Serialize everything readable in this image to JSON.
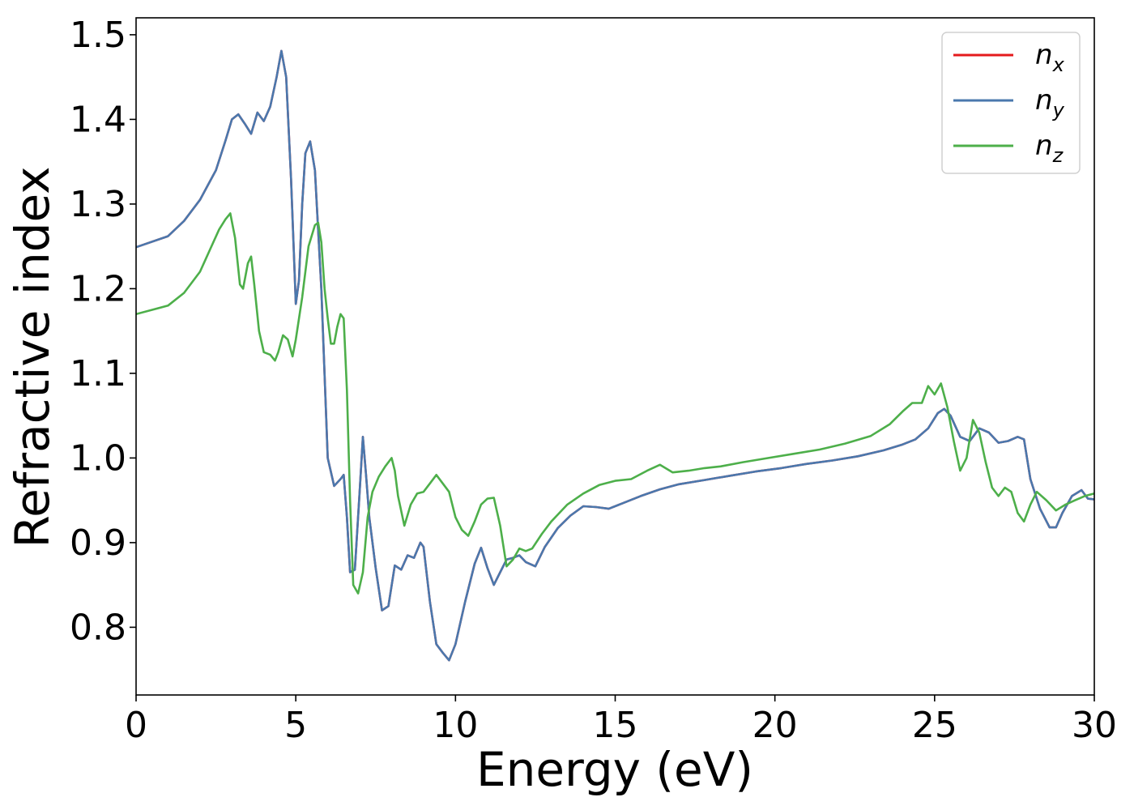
{
  "chart_data": {
    "type": "line",
    "xlabel": "Energy (eV)",
    "ylabel": "Refractive index",
    "xlim": [
      0,
      30
    ],
    "ylim": [
      0.72,
      1.52
    ],
    "xticks": [
      0,
      5,
      10,
      15,
      20,
      25,
      30
    ],
    "xtick_labels": [
      "0",
      "5",
      "10",
      "15",
      "20",
      "25",
      "30"
    ],
    "yticks": [
      0.8,
      0.9,
      1.0,
      1.1,
      1.2,
      1.3,
      1.4,
      1.5
    ],
    "ytick_labels": [
      "0.8",
      "0.9",
      "1.0",
      "1.1",
      "1.2",
      "1.3",
      "1.4",
      "1.5"
    ],
    "grid": false,
    "legend_position": "top-right",
    "series": [
      {
        "name": "n",
        "subscript": "x",
        "color": "#e41a1c",
        "x": [
          0,
          1,
          1.5,
          2,
          2.5,
          2.8,
          3.0,
          3.2,
          3.4,
          3.6,
          3.8,
          4.0,
          4.2,
          4.4,
          4.55,
          4.7,
          4.85,
          5.0,
          5.1,
          5.2,
          5.3,
          5.45,
          5.6,
          5.8,
          6.0,
          6.2,
          6.4,
          6.5,
          6.6,
          6.7,
          6.85,
          7.0,
          7.1,
          7.2,
          7.3,
          7.5,
          7.7,
          7.9,
          8.1,
          8.3,
          8.5,
          8.7,
          8.9,
          9.0,
          9.2,
          9.4,
          9.6,
          9.8,
          10.0,
          10.3,
          10.6,
          10.8,
          11.0,
          11.2,
          11.4,
          11.6,
          11.8,
          12.0,
          12.2,
          12.5,
          12.8,
          13.2,
          13.6,
          14.0,
          14.4,
          14.8,
          15.2,
          15.8,
          16.4,
          17.0,
          17.8,
          18.6,
          19.4,
          20.2,
          21.0,
          21.8,
          22.6,
          23.4,
          24.0,
          24.4,
          24.8,
          25.1,
          25.3,
          25.5,
          25.8,
          26.1,
          26.4,
          26.7,
          27.0,
          27.3,
          27.6,
          27.8,
          28.0,
          28.3,
          28.6,
          28.8,
          29.0,
          29.3,
          29.6,
          29.8,
          30.0
        ],
        "y": [
          1.249,
          1.262,
          1.28,
          1.305,
          1.34,
          1.375,
          1.4,
          1.406,
          1.395,
          1.383,
          1.408,
          1.398,
          1.415,
          1.45,
          1.481,
          1.45,
          1.33,
          1.182,
          1.21,
          1.3,
          1.36,
          1.374,
          1.34,
          1.2,
          1.0,
          0.967,
          0.975,
          0.98,
          0.93,
          0.865,
          0.868,
          0.96,
          1.025,
          0.98,
          0.93,
          0.87,
          0.82,
          0.825,
          0.873,
          0.868,
          0.885,
          0.882,
          0.9,
          0.895,
          0.83,
          0.78,
          0.77,
          0.761,
          0.78,
          0.83,
          0.875,
          0.894,
          0.87,
          0.85,
          0.865,
          0.88,
          0.882,
          0.885,
          0.877,
          0.872,
          0.895,
          0.917,
          0.932,
          0.943,
          0.942,
          0.94,
          0.946,
          0.955,
          0.963,
          0.969,
          0.974,
          0.979,
          0.984,
          0.988,
          0.993,
          0.997,
          1.002,
          1.009,
          1.016,
          1.022,
          1.035,
          1.053,
          1.058,
          1.05,
          1.025,
          1.02,
          1.035,
          1.03,
          1.018,
          1.02,
          1.025,
          1.022,
          0.975,
          0.94,
          0.918,
          0.918,
          0.935,
          0.955,
          0.962,
          0.952,
          0.951
        ]
      },
      {
        "name": "n",
        "subscript": "y",
        "color": "#4a78ad",
        "x": [
          0,
          1,
          1.5,
          2,
          2.5,
          2.8,
          3.0,
          3.2,
          3.4,
          3.6,
          3.8,
          4.0,
          4.2,
          4.4,
          4.55,
          4.7,
          4.85,
          5.0,
          5.1,
          5.2,
          5.3,
          5.45,
          5.6,
          5.8,
          6.0,
          6.2,
          6.4,
          6.5,
          6.6,
          6.7,
          6.85,
          7.0,
          7.1,
          7.2,
          7.3,
          7.5,
          7.7,
          7.9,
          8.1,
          8.3,
          8.5,
          8.7,
          8.9,
          9.0,
          9.2,
          9.4,
          9.6,
          9.8,
          10.0,
          10.3,
          10.6,
          10.8,
          11.0,
          11.2,
          11.4,
          11.6,
          11.8,
          12.0,
          12.2,
          12.5,
          12.8,
          13.2,
          13.6,
          14.0,
          14.4,
          14.8,
          15.2,
          15.8,
          16.4,
          17.0,
          17.8,
          18.6,
          19.4,
          20.2,
          21.0,
          21.8,
          22.6,
          23.4,
          24.0,
          24.4,
          24.8,
          25.1,
          25.3,
          25.5,
          25.8,
          26.1,
          26.4,
          26.7,
          27.0,
          27.3,
          27.6,
          27.8,
          28.0,
          28.3,
          28.6,
          28.8,
          29.0,
          29.3,
          29.6,
          29.8,
          30.0
        ],
        "y": [
          1.249,
          1.262,
          1.28,
          1.305,
          1.34,
          1.375,
          1.4,
          1.406,
          1.395,
          1.383,
          1.408,
          1.398,
          1.415,
          1.45,
          1.481,
          1.45,
          1.33,
          1.182,
          1.21,
          1.3,
          1.36,
          1.374,
          1.34,
          1.2,
          1.0,
          0.967,
          0.975,
          0.98,
          0.93,
          0.865,
          0.868,
          0.96,
          1.025,
          0.98,
          0.93,
          0.87,
          0.82,
          0.825,
          0.873,
          0.868,
          0.885,
          0.882,
          0.9,
          0.895,
          0.83,
          0.78,
          0.77,
          0.761,
          0.78,
          0.83,
          0.875,
          0.894,
          0.87,
          0.85,
          0.865,
          0.88,
          0.882,
          0.885,
          0.877,
          0.872,
          0.895,
          0.917,
          0.932,
          0.943,
          0.942,
          0.94,
          0.946,
          0.955,
          0.963,
          0.969,
          0.974,
          0.979,
          0.984,
          0.988,
          0.993,
          0.997,
          1.002,
          1.009,
          1.016,
          1.022,
          1.035,
          1.053,
          1.058,
          1.05,
          1.025,
          1.02,
          1.035,
          1.03,
          1.018,
          1.02,
          1.025,
          1.022,
          0.975,
          0.94,
          0.918,
          0.918,
          0.935,
          0.955,
          0.962,
          0.952,
          0.951
        ]
      },
      {
        "name": "n",
        "subscript": "z",
        "color": "#4daf4a",
        "x": [
          0,
          1,
          1.5,
          2,
          2.3,
          2.6,
          2.8,
          2.95,
          3.1,
          3.25,
          3.35,
          3.5,
          3.6,
          3.7,
          3.85,
          4.0,
          4.2,
          4.35,
          4.45,
          4.6,
          4.75,
          4.9,
          5.0,
          5.2,
          5.4,
          5.6,
          5.7,
          5.8,
          5.9,
          6.0,
          6.1,
          6.2,
          6.3,
          6.4,
          6.5,
          6.6,
          6.7,
          6.8,
          6.95,
          7.1,
          7.25,
          7.4,
          7.6,
          7.8,
          8.0,
          8.1,
          8.2,
          8.4,
          8.6,
          8.8,
          9.0,
          9.2,
          9.4,
          9.6,
          9.8,
          10.0,
          10.2,
          10.4,
          10.6,
          10.8,
          11.0,
          11.2,
          11.4,
          11.6,
          11.8,
          12.0,
          12.2,
          12.4,
          12.7,
          13.0,
          13.5,
          14.0,
          14.5,
          15.0,
          15.5,
          16.0,
          16.4,
          16.8,
          17.3,
          17.8,
          18.3,
          19.0,
          19.8,
          20.6,
          21.4,
          22.2,
          23.0,
          23.6,
          24.0,
          24.3,
          24.6,
          24.8,
          25.0,
          25.2,
          25.4,
          25.6,
          25.8,
          26.0,
          26.2,
          26.4,
          26.6,
          26.8,
          27.0,
          27.2,
          27.4,
          27.6,
          27.8,
          28.0,
          28.2,
          28.5,
          28.8,
          29.1,
          29.4,
          29.7,
          30.0
        ],
        "y": [
          1.17,
          1.18,
          1.195,
          1.22,
          1.245,
          1.27,
          1.282,
          1.289,
          1.26,
          1.205,
          1.2,
          1.23,
          1.238,
          1.205,
          1.15,
          1.125,
          1.122,
          1.115,
          1.125,
          1.145,
          1.14,
          1.12,
          1.14,
          1.19,
          1.25,
          1.275,
          1.278,
          1.255,
          1.2,
          1.165,
          1.135,
          1.135,
          1.155,
          1.17,
          1.165,
          1.08,
          0.95,
          0.85,
          0.84,
          0.865,
          0.93,
          0.96,
          0.978,
          0.99,
          1.0,
          0.985,
          0.955,
          0.92,
          0.945,
          0.958,
          0.96,
          0.97,
          0.98,
          0.97,
          0.96,
          0.93,
          0.915,
          0.908,
          0.925,
          0.945,
          0.952,
          0.953,
          0.92,
          0.872,
          0.88,
          0.893,
          0.89,
          0.893,
          0.91,
          0.925,
          0.945,
          0.958,
          0.968,
          0.973,
          0.975,
          0.985,
          0.992,
          0.983,
          0.985,
          0.988,
          0.99,
          0.995,
          1.0,
          1.005,
          1.01,
          1.017,
          1.026,
          1.04,
          1.055,
          1.065,
          1.065,
          1.085,
          1.075,
          1.088,
          1.06,
          1.02,
          0.985,
          1.0,
          1.045,
          1.03,
          0.995,
          0.965,
          0.955,
          0.965,
          0.96,
          0.935,
          0.925,
          0.945,
          0.96,
          0.95,
          0.938,
          0.945,
          0.95,
          0.955,
          0.958
        ]
      }
    ]
  }
}
